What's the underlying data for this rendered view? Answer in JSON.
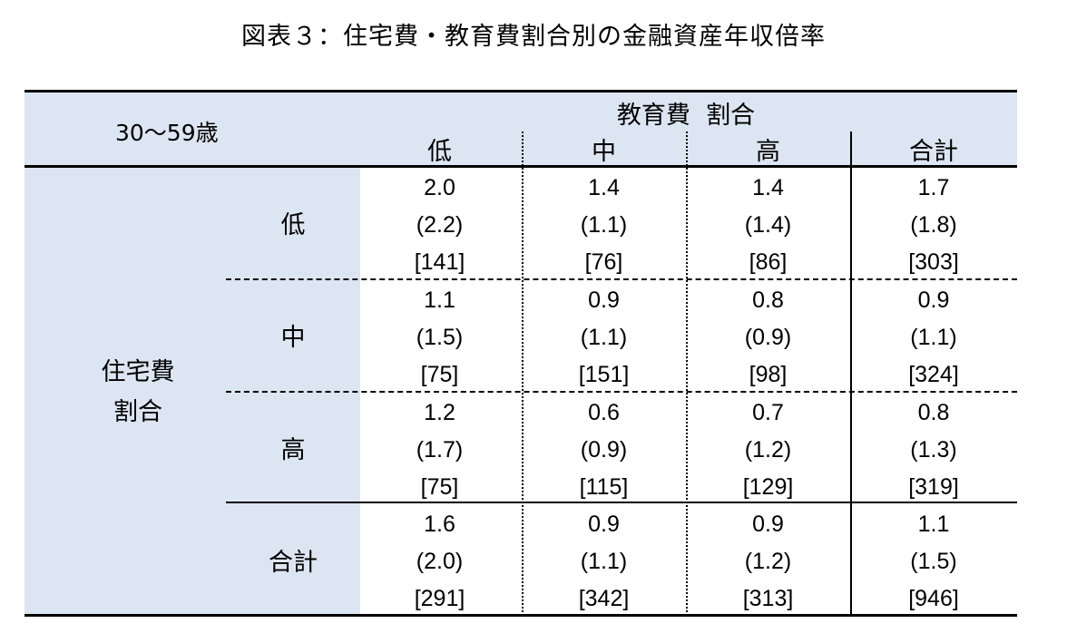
{
  "title": "図表３：住宅費・教育費割合別の金融資産年収倍率",
  "table": {
    "age_label": "30～59歳",
    "col_group_label": "教育費  割合",
    "columns": [
      "低",
      "中",
      "高",
      "合計"
    ],
    "row_group_label_line1": "住宅費",
    "row_group_label_line2": "割合",
    "rows": [
      {
        "label": "低",
        "cells": [
          {
            "ratio": "2.0",
            "median": "(2.2)",
            "n": "[141]"
          },
          {
            "ratio": "1.4",
            "median": "(1.1)",
            "n": "[76]"
          },
          {
            "ratio": "1.4",
            "median": "(1.4)",
            "n": "[86]"
          },
          {
            "ratio": "1.7",
            "median": "(1.8)",
            "n": "[303]"
          }
        ]
      },
      {
        "label": "中",
        "cells": [
          {
            "ratio": "1.1",
            "median": "(1.5)",
            "n": "[75]"
          },
          {
            "ratio": "0.9",
            "median": "(1.1)",
            "n": "[151]"
          },
          {
            "ratio": "0.8",
            "median": "(0.9)",
            "n": "[98]"
          },
          {
            "ratio": "0.9",
            "median": "(1.1)",
            "n": "[324]"
          }
        ]
      },
      {
        "label": "高",
        "cells": [
          {
            "ratio": "1.2",
            "median": "(1.7)",
            "n": "[75]"
          },
          {
            "ratio": "0.6",
            "median": "(0.9)",
            "n": "[115]"
          },
          {
            "ratio": "0.7",
            "median": "(1.2)",
            "n": "[129]"
          },
          {
            "ratio": "0.8",
            "median": "(1.3)",
            "n": "[319]"
          }
        ]
      },
      {
        "label": "合計",
        "cells": [
          {
            "ratio": "1.6",
            "median": "(2.0)",
            "n": "[291]"
          },
          {
            "ratio": "0.9",
            "median": "(1.1)",
            "n": "[342]"
          },
          {
            "ratio": "0.9",
            "median": "(1.2)",
            "n": "[313]"
          },
          {
            "ratio": "1.1",
            "median": "(1.5)",
            "n": "[946]"
          }
        ]
      }
    ]
  },
  "colors": {
    "header_fill": "#dce6f2",
    "text": "#000000"
  }
}
